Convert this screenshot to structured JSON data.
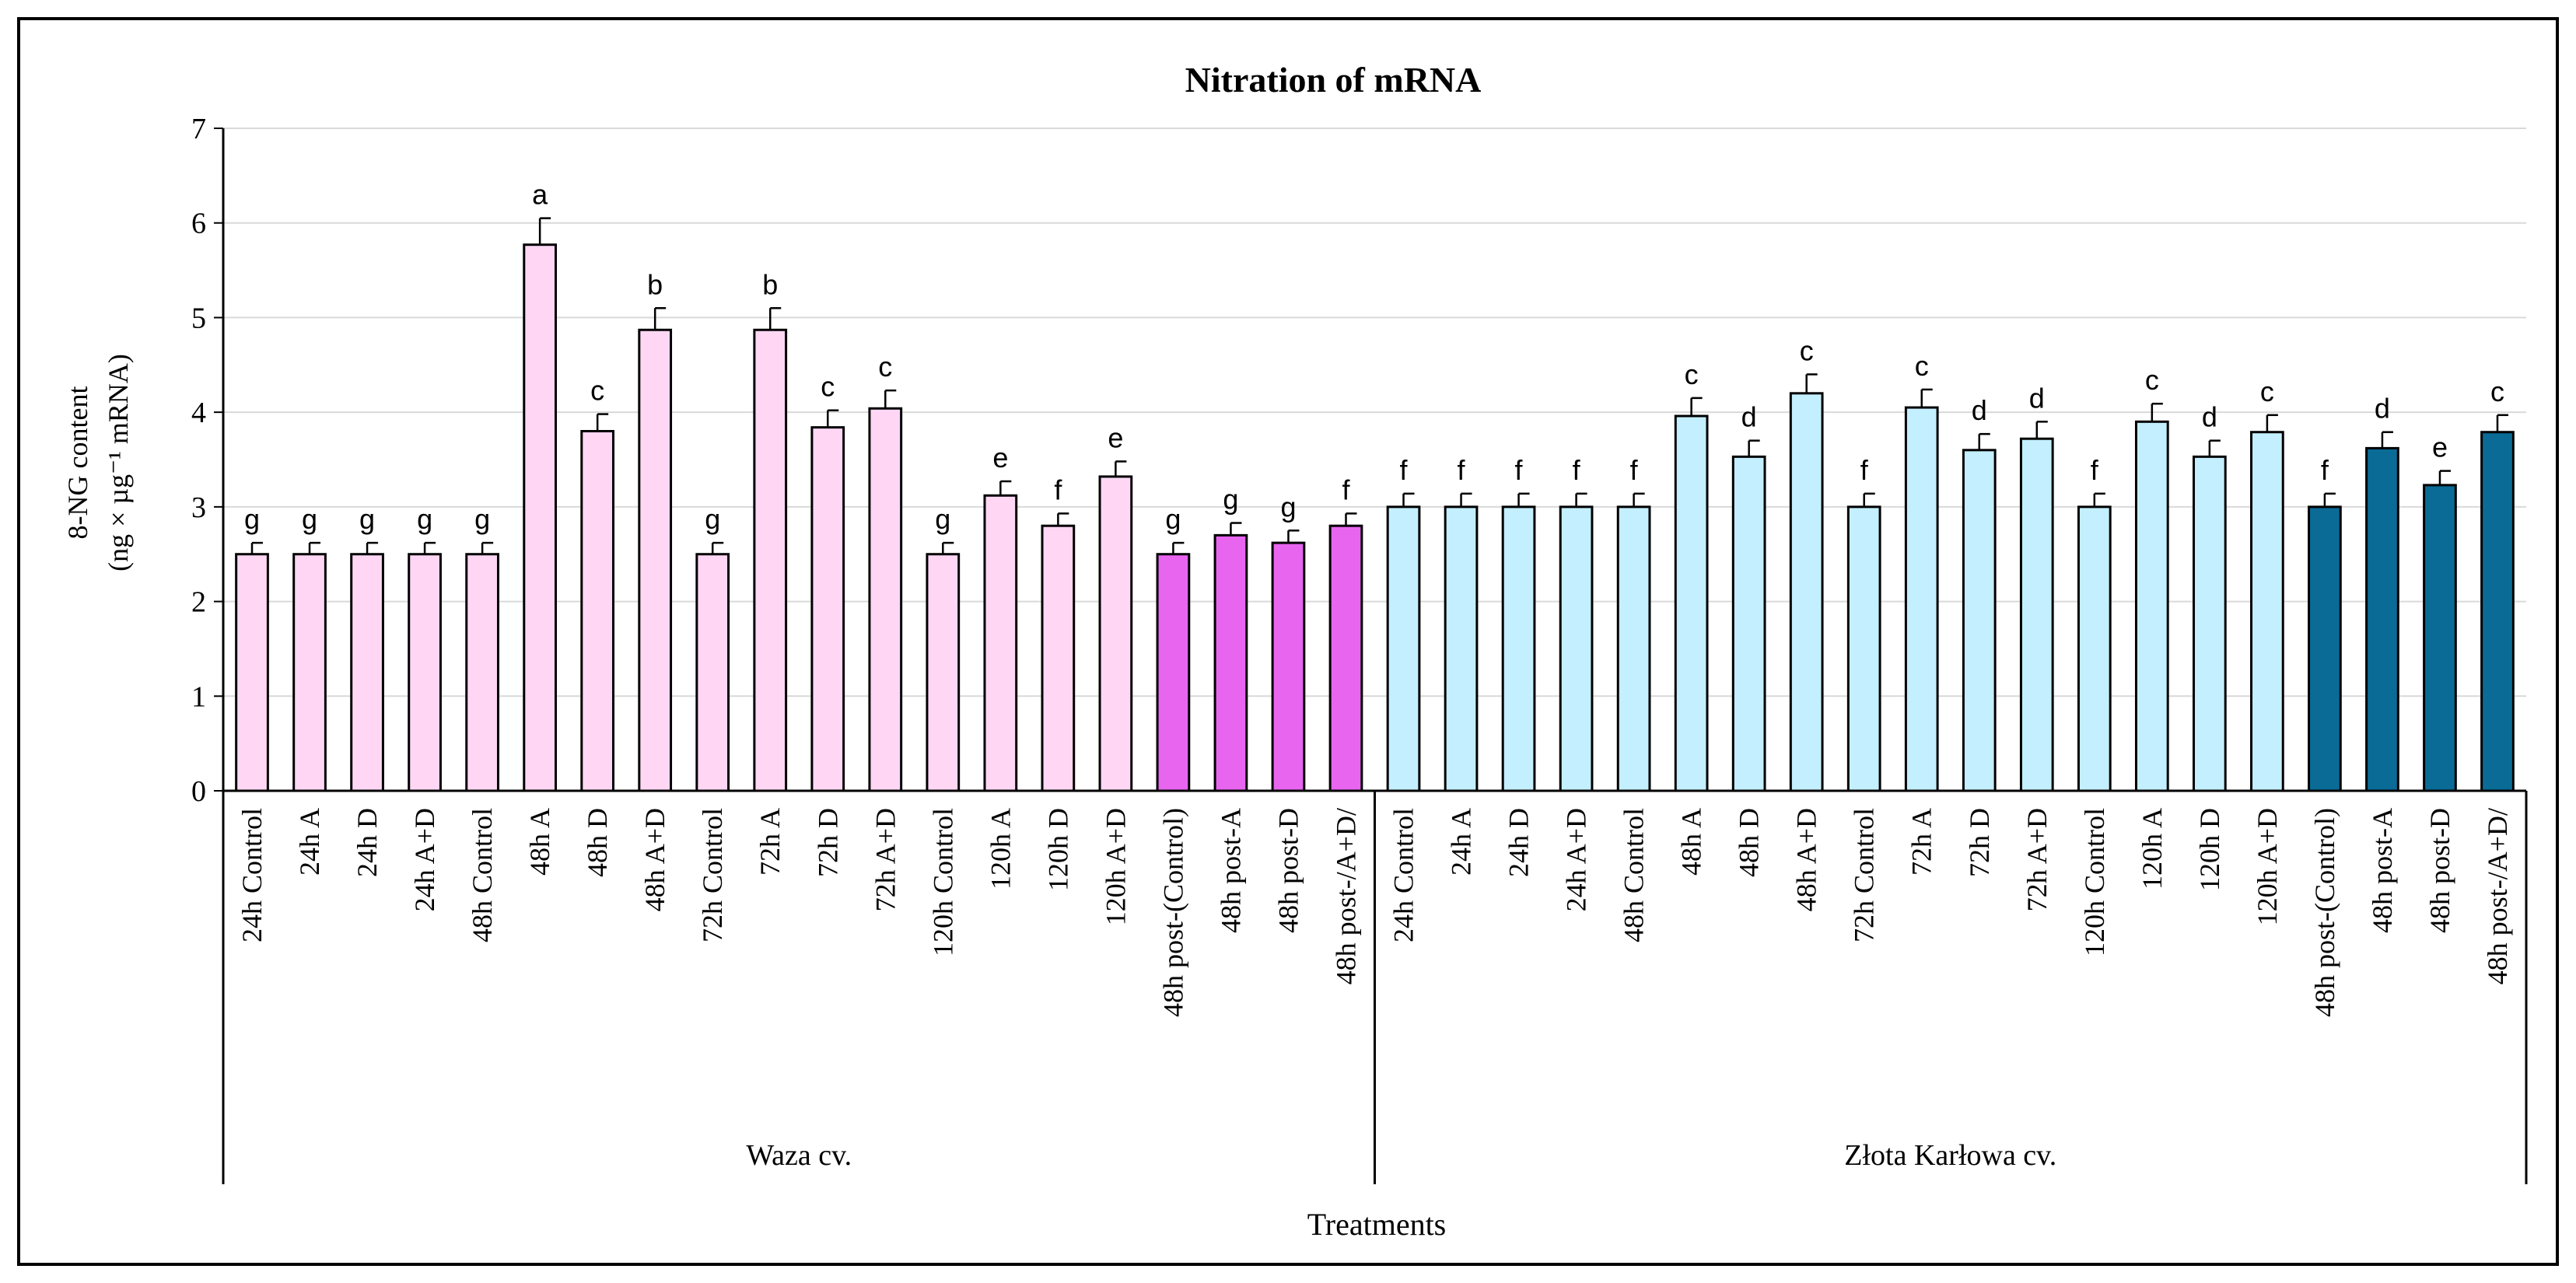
{
  "chart_data": {
    "type": "bar",
    "title": "Nitration of mRNA",
    "xlabel": "Treatments",
    "ylabel_line1": "8-NG content",
    "ylabel_line2": "(ng × µg⁻¹ mRNA)",
    "ylim": [
      0,
      7
    ],
    "yticks": [
      "0",
      "1",
      "2",
      "3",
      "4",
      "5",
      "6",
      "7"
    ],
    "grid": true,
    "groups": [
      {
        "label": "Waza cv.",
        "start": 0,
        "count": 20
      },
      {
        "label": "Złota Karłowa cv.",
        "start": 20,
        "count": 20
      }
    ],
    "categories": [
      "24h Control",
      "24h A",
      "24h D",
      "24h A+D",
      "48h Control",
      "48h A",
      "48h D",
      "48h A+D",
      "72h Control",
      "72h A",
      "72h D",
      "72h A+D",
      "120h Control",
      "120h A",
      "120h D",
      "120h A+D",
      "48h post-(Control)",
      "48h post-A",
      "48h post-D",
      "48h post-/A+D/",
      "24h Control",
      "24h A",
      "24h D",
      "24h A+D",
      "48h Control",
      "48h A",
      "48h D",
      "48h A+D",
      "72h Control",
      "72h A",
      "72h D",
      "72h A+D",
      "120h Control",
      "120h A",
      "120h D",
      "120h A+D",
      "48h post-(Control)",
      "48h post-A",
      "48h post-D",
      "48h post-/A+D/"
    ],
    "values": [
      2.5,
      2.5,
      2.5,
      2.5,
      2.5,
      5.77,
      3.8,
      4.87,
      2.5,
      4.87,
      3.84,
      4.04,
      2.5,
      3.12,
      2.8,
      3.32,
      2.5,
      2.7,
      2.62,
      2.8,
      3.0,
      3.0,
      3.0,
      3.0,
      3.0,
      3.96,
      3.53,
      4.2,
      3.0,
      4.05,
      3.6,
      3.72,
      3.0,
      3.9,
      3.53,
      3.79,
      3.0,
      3.62,
      3.23,
      3.79
    ],
    "errors": [
      0.12,
      0.12,
      0.12,
      0.12,
      0.12,
      0.28,
      0.18,
      0.23,
      0.12,
      0.23,
      0.18,
      0.19,
      0.12,
      0.15,
      0.13,
      0.16,
      0.12,
      0.13,
      0.13,
      0.13,
      0.14,
      0.14,
      0.14,
      0.14,
      0.14,
      0.19,
      0.17,
      0.2,
      0.14,
      0.19,
      0.17,
      0.18,
      0.14,
      0.19,
      0.17,
      0.18,
      0.14,
      0.17,
      0.15,
      0.18
    ],
    "letters": [
      "g",
      "g",
      "g",
      "g",
      "g",
      "a",
      "c",
      "b",
      "g",
      "b",
      "c",
      "c",
      "g",
      "e",
      "f",
      "e",
      "g",
      "g",
      "g",
      "f",
      "f",
      "f",
      "f",
      "f",
      "f",
      "c",
      "d",
      "c",
      "f",
      "c",
      "d",
      "d",
      "f",
      "c",
      "d",
      "c",
      "f",
      "d",
      "e",
      "c"
    ],
    "colors": [
      "#ffd7f5",
      "#ffd7f5",
      "#ffd7f5",
      "#ffd7f5",
      "#ffd7f5",
      "#ffd7f5",
      "#ffd7f5",
      "#ffd7f5",
      "#ffd7f5",
      "#ffd7f5",
      "#ffd7f5",
      "#ffd7f5",
      "#ffd7f5",
      "#ffd7f5",
      "#ffd7f5",
      "#ffd7f5",
      "#e865f0",
      "#e865f0",
      "#e865f0",
      "#e865f0",
      "#c4efff",
      "#c4efff",
      "#c4efff",
      "#c4efff",
      "#c4efff",
      "#c4efff",
      "#c4efff",
      "#c4efff",
      "#c4efff",
      "#c4efff",
      "#c4efff",
      "#c4efff",
      "#c4efff",
      "#c4efff",
      "#c4efff",
      "#c4efff",
      "#0a6b96",
      "#0a6b96",
      "#0a6b96",
      "#0a6b96"
    ]
  }
}
